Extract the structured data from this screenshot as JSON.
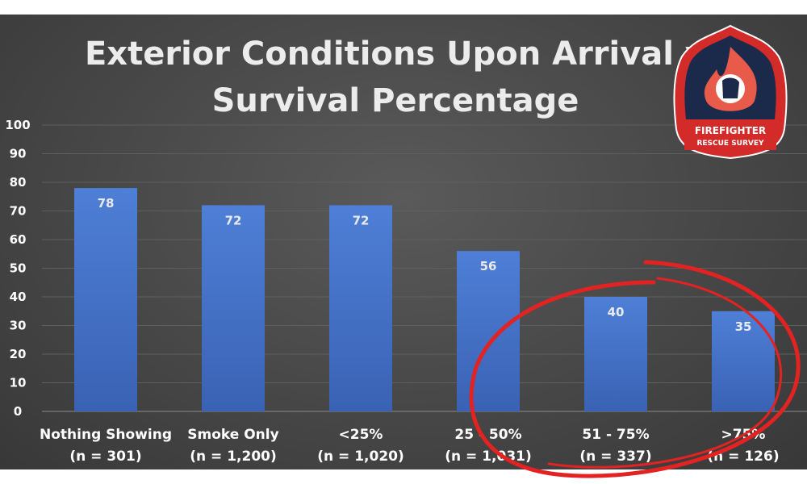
{
  "chart_data": {
    "type": "bar",
    "title_lines": [
      "Exterior Conditions Upon Arrival v",
      "Survival Percentage"
    ],
    "categories": [
      [
        "Nothing Showing",
        "(n = 301)"
      ],
      [
        "Smoke Only",
        "(n = 1,200)"
      ],
      [
        "<25%",
        "(n = 1,020)"
      ],
      [
        "25 - 50%",
        "(n = 1,031)"
      ],
      [
        "51 - 75%",
        "(n = 337)"
      ],
      [
        ">75%",
        "(n = 126)"
      ]
    ],
    "values": [
      78,
      72,
      72,
      56,
      40,
      35
    ],
    "ylim": [
      0,
      100
    ],
    "yticks": [
      0,
      10,
      20,
      30,
      40,
      50,
      60,
      70,
      80,
      90,
      100
    ],
    "grid": true,
    "bar_color": "#4472c4",
    "annotation": {
      "type": "hand-drawn circle",
      "color": "#e32222",
      "encloses_categories": [
        "51 - 75%",
        ">75%"
      ]
    }
  },
  "logo": {
    "line1": "FIREFIGHTER",
    "line2": "RESCUE SURVEY",
    "colors": {
      "red": "#d32a2a",
      "navy": "#1b2a4a",
      "white": "#ffffff"
    }
  }
}
